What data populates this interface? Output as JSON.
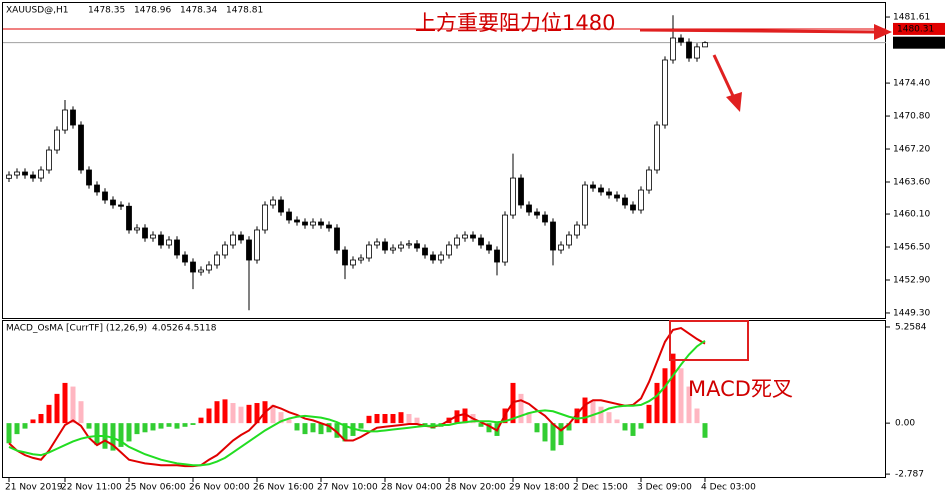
{
  "chart_data": [
    {
      "type": "candlestick",
      "title": "XAUUSD@,H1",
      "categories": [
        "21 Nov 2019",
        null,
        null,
        null,
        null,
        null,
        null,
        "22 Nov 11:00",
        null,
        null,
        null,
        null,
        null,
        null,
        null,
        "25 Nov 06:00",
        null,
        null,
        null,
        null,
        null,
        null,
        null,
        "26 Nov 00:00",
        null,
        null,
        null,
        null,
        null,
        null,
        null,
        "26 Nov 16:00",
        null,
        null,
        null,
        null,
        null,
        null,
        null,
        "27 Nov 10:00",
        null,
        null,
        null,
        null,
        null,
        null,
        null,
        "28 Nov 04:00",
        null,
        null,
        null,
        null,
        null,
        null,
        null,
        "28 Nov 20:00",
        null,
        null,
        null,
        null,
        null,
        null,
        null,
        "29 Nov 18:00",
        null,
        null,
        null,
        null,
        null,
        null,
        null,
        "2 Dec 15:00",
        null,
        null,
        null,
        null,
        null,
        null,
        null,
        "3 Dec 09:00",
        null,
        null,
        null,
        null,
        null,
        null,
        null,
        "4 Dec 03:00"
      ],
      "open": [
        1464.0,
        1464.36,
        1464.69,
        1464.36,
        1464.03,
        1464.91,
        1467.09,
        1469.27,
        1471.46,
        1469.82,
        1464.91,
        1463.27,
        1462.51,
        1461.63,
        1461.09,
        1460.95,
        1458.36,
        1458.58,
        1457.48,
        1457.81,
        1456.72,
        1457.27,
        1455.63,
        1454.86,
        1453.77,
        1453.99,
        1454.54,
        1455.63,
        1456.72,
        1457.81,
        1457.27,
        1455.08,
        1458.36,
        1461.09,
        1461.63,
        1460.32,
        1459.45,
        1459.23,
        1458.9,
        1459.23,
        1458.9,
        1458.58,
        1456.17,
        1454.54,
        1455.08,
        1455.3,
        1456.72,
        1457.05,
        1456.17,
        1456.39,
        1456.72,
        1456.85,
        1456.39,
        1455.63,
        1455.08,
        1455.63,
        1456.72,
        1457.48,
        1457.81,
        1457.48,
        1456.72,
        1456.17,
        1454.86,
        1459.99,
        1464.03,
        1461.09,
        1460.32,
        1459.99,
        1459.23,
        1456.17,
        1456.72,
        1457.81,
        1458.9,
        1463.27,
        1462.94,
        1462.51,
        1462.18,
        1461.85,
        1461.09,
        1460.54,
        1462.72,
        1464.91,
        1469.82,
        1476.92,
        1479.32,
        1478.88,
        1477.13,
        1478.35
      ],
      "high": [
        1464.76,
        1465.09,
        1465.09,
        1464.76,
        1465.31,
        1467.49,
        1469.67,
        1472.55,
        1471.86,
        1470.22,
        1465.31,
        1463.67,
        1462.91,
        1462.03,
        1461.49,
        1461.35,
        1458.98,
        1458.98,
        1458.21,
        1458.21,
        1457.67,
        1457.67,
        1456.03,
        1455.26,
        1454.39,
        1454.94,
        1456.03,
        1457.12,
        1458.21,
        1458.21,
        1457.67,
        1458.76,
        1461.49,
        1462.03,
        1462.03,
        1460.72,
        1459.85,
        1459.63,
        1459.63,
        1459.63,
        1459.3,
        1458.98,
        1456.57,
        1455.48,
        1455.7,
        1457.12,
        1457.45,
        1457.45,
        1456.79,
        1457.12,
        1457.25,
        1457.25,
        1456.79,
        1456.03,
        1456.03,
        1457.12,
        1457.88,
        1458.21,
        1458.21,
        1457.88,
        1457.12,
        1456.57,
        1460.39,
        1466.7,
        1464.43,
        1461.49,
        1460.72,
        1460.39,
        1459.63,
        1457.12,
        1458.21,
        1459.3,
        1463.67,
        1463.67,
        1463.34,
        1462.91,
        1462.58,
        1462.25,
        1461.49,
        1463.12,
        1465.31,
        1470.22,
        1477.32,
        1481.8,
        1479.72,
        1479.28,
        1478.75,
        1478.96
      ],
      "low": [
        1463.6,
        1463.96,
        1463.96,
        1463.63,
        1463.63,
        1464.51,
        1466.69,
        1468.87,
        1469.42,
        1464.51,
        1462.87,
        1462.11,
        1461.23,
        1460.69,
        1460.55,
        1457.96,
        1457.96,
        1457.08,
        1457.08,
        1456.32,
        1456.32,
        1455.23,
        1454.46,
        1451.9,
        1453.37,
        1453.59,
        1454.14,
        1455.23,
        1456.32,
        1456.87,
        1449.6,
        1454.68,
        1457.96,
        1460.69,
        1459.92,
        1459.05,
        1458.83,
        1458.5,
        1458.5,
        1458.5,
        1458.18,
        1455.77,
        1453.0,
        1454.14,
        1454.68,
        1454.9,
        1456.32,
        1455.77,
        1455.77,
        1455.99,
        1456.32,
        1455.99,
        1455.23,
        1454.68,
        1454.68,
        1455.23,
        1456.32,
        1457.08,
        1457.08,
        1456.32,
        1455.77,
        1453.4,
        1454.46,
        1459.59,
        1460.69,
        1459.92,
        1459.59,
        1458.83,
        1454.5,
        1455.77,
        1456.32,
        1457.41,
        1458.5,
        1462.54,
        1462.11,
        1461.78,
        1461.45,
        1460.69,
        1460.14,
        1460.14,
        1462.32,
        1464.51,
        1469.42,
        1476.52,
        1478.48,
        1476.73,
        1476.73,
        1478.34
      ],
      "close": [
        1464.36,
        1464.69,
        1464.36,
        1464.03,
        1464.91,
        1467.09,
        1469.27,
        1471.46,
        1469.82,
        1464.91,
        1463.27,
        1462.51,
        1461.63,
        1461.09,
        1460.95,
        1458.36,
        1458.58,
        1457.48,
        1457.81,
        1456.72,
        1457.27,
        1455.63,
        1454.86,
        1453.77,
        1453.99,
        1454.54,
        1455.63,
        1456.72,
        1457.81,
        1457.27,
        1455.08,
        1458.36,
        1461.09,
        1461.63,
        1460.32,
        1459.45,
        1459.23,
        1458.9,
        1459.23,
        1458.9,
        1458.58,
        1456.17,
        1454.54,
        1455.08,
        1455.3,
        1456.72,
        1457.05,
        1456.17,
        1456.39,
        1456.72,
        1456.85,
        1456.39,
        1455.63,
        1455.08,
        1455.63,
        1456.72,
        1457.48,
        1457.81,
        1457.48,
        1456.72,
        1456.17,
        1454.86,
        1459.99,
        1464.03,
        1461.09,
        1460.32,
        1459.99,
        1459.23,
        1456.17,
        1456.72,
        1457.81,
        1458.9,
        1463.27,
        1462.94,
        1462.51,
        1462.18,
        1461.85,
        1461.09,
        1460.54,
        1462.72,
        1464.91,
        1469.82,
        1476.92,
        1479.32,
        1478.88,
        1477.13,
        1478.35,
        1478.81
      ],
      "ylim": [
        1448.75,
        1483.47
      ],
      "yticks": [
        1481.61,
        {
          "value": 1474.4,
          "label": "1474.40"
        },
        {
          "value": 1470.8,
          "label": "1470.80"
        },
        {
          "value": 1467.2,
          "label": "1467.20"
        },
        {
          "value": 1463.6,
          "label": "1463.60"
        },
        {
          "value": 1460.1,
          "label": "1460.10"
        },
        {
          "value": 1456.5,
          "label": "1456.50"
        },
        {
          "value": 1452.9,
          "label": "1452.90"
        },
        {
          "value": 1449.3,
          "label": "1449.30"
        }
      ],
      "resistance_line": 1480.31,
      "colors": {
        "up": "#ffffff",
        "down": "#000000",
        "outline": "#000000",
        "resistance": "#e00000",
        "price_line": "#a0a0a0"
      },
      "annotation": "上方重要阻力位1480"
    },
    {
      "type": "macd",
      "title": "MACD_OsMA [CurrTF] (12,26,9)",
      "macd_reading": 4.0526,
      "signal_reading": 4.5118,
      "histogram": [
        -1.1,
        -0.6,
        -0.3,
        0.2,
        0.5,
        1.0,
        1.6,
        2.2,
        2.0,
        1.2,
        -0.3,
        -1.2,
        -1.4,
        -1.5,
        -1.3,
        -1.0,
        -0.6,
        -0.5,
        -0.4,
        -0.3,
        -0.2,
        -0.3,
        -0.2,
        -0.1,
        0.3,
        0.8,
        1.2,
        1.3,
        1.1,
        0.9,
        1.0,
        1.1,
        1.2,
        1.0,
        0.6,
        0.2,
        -0.4,
        -0.6,
        -0.5,
        -0.6,
        -0.5,
        -0.8,
        -1.0,
        -0.7,
        -0.3,
        0.4,
        0.5,
        0.5,
        0.5,
        0.6,
        0.5,
        0.3,
        -0.2,
        -0.3,
        -0.2,
        0.3,
        0.7,
        0.8,
        0.5,
        -0.2,
        -0.5,
        -0.7,
        0.8,
        2.2,
        1.6,
        0.6,
        -0.5,
        -1.0,
        -1.5,
        -1.2,
        -0.4,
        0.8,
        1.4,
        1.2,
        0.9,
        0.6,
        0.2,
        -0.4,
        -0.7,
        -0.3,
        1.0,
        2.2,
        3.0,
        3.8,
        3.0,
        2.0,
        0.8,
        -0.8
      ],
      "macd": [
        -1.1,
        -1.5,
        -1.75,
        -1.9,
        -2.0,
        -1.5,
        -0.8,
        -0.1,
        0.15,
        -0.15,
        -0.8,
        -1.2,
        -0.95,
        -1.2,
        -1.6,
        -2.0,
        -2.1,
        -2.2,
        -2.25,
        -2.3,
        -2.3,
        -2.3,
        -2.35,
        -2.35,
        -2.3,
        -2.0,
        -1.75,
        -1.35,
        -0.95,
        -0.65,
        -0.4,
        0.05,
        0.6,
        0.95,
        0.8,
        0.6,
        0.45,
        0.25,
        0.15,
        0,
        -0.15,
        -0.5,
        -0.95,
        -0.95,
        -0.75,
        -0.5,
        -0.25,
        -0.2,
        -0.15,
        -0.1,
        -0.05,
        -0.05,
        -0.15,
        -0.2,
        -0.1,
        0.15,
        0.4,
        0.5,
        0.25,
        0.05,
        -0.15,
        -0.4,
        0.45,
        1.15,
        1.25,
        1.05,
        0.7,
        0.4,
        -0.05,
        -0.4,
        -0.05,
        0.5,
        1.0,
        1.25,
        1.25,
        1.15,
        1.05,
        0.95,
        1.0,
        1.35,
        2.25,
        3.35,
        4.45,
        5.1,
        5.2,
        4.9,
        4.6,
        4.35
      ],
      "signal": [
        -1.3,
        -1.5,
        -1.6,
        -1.7,
        -1.75,
        -1.6,
        -1.4,
        -1.2,
        -1.0,
        -0.85,
        -0.75,
        -0.7,
        -0.7,
        -0.8,
        -1.0,
        -1.3,
        -1.5,
        -1.7,
        -1.85,
        -2.0,
        -2.1,
        -2.2,
        -2.25,
        -2.3,
        -2.3,
        -2.25,
        -2.1,
        -1.9,
        -1.6,
        -1.3,
        -1.0,
        -0.7,
        -0.4,
        -0.15,
        0.1,
        0.25,
        0.35,
        0.4,
        0.35,
        0.3,
        0.2,
        0.05,
        -0.15,
        -0.3,
        -0.4,
        -0.45,
        -0.45,
        -0.4,
        -0.35,
        -0.3,
        -0.25,
        -0.2,
        -0.15,
        -0.15,
        -0.1,
        -0.1,
        0,
        0.05,
        0.1,
        0.1,
        0.1,
        0.05,
        0.1,
        0.25,
        0.4,
        0.55,
        0.65,
        0.7,
        0.65,
        0.5,
        0.35,
        0.25,
        0.3,
        0.45,
        0.6,
        0.8,
        0.9,
        0.95,
        0.95,
        1.0,
        1.2,
        1.5,
        2.0,
        2.6,
        3.2,
        3.75,
        4.2,
        4.5
      ],
      "ylim": [
        -3.0,
        5.64
      ],
      "yticks": [
        5.2584,
        {
          "value": 0,
          "label": "0.00"
        },
        -2.787
      ],
      "colors": {
        "rising": "#ff0000",
        "falling": "#ffb6c1",
        "negative": "#32cd32",
        "macd": "#e00000",
        "signal": "#22dd22"
      },
      "annotation": "MACD死叉"
    }
  ]
}
